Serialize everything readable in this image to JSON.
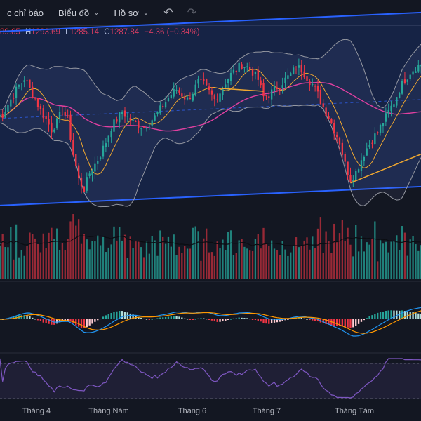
{
  "toolbar": {
    "indicators_label": "c chỉ báo",
    "chart_label": "Biểu đồ",
    "profile_label": "Hồ sơ"
  },
  "ohlc": {
    "open": "89.65",
    "high_key": "H",
    "high": "1293.69",
    "low_key": "L",
    "low": "1285.14",
    "close_key": "C",
    "close": "1287.84",
    "change": "−4.36 (−0.34%)"
  },
  "colors": {
    "up": "#26a69a",
    "down": "#f23645",
    "channel": "#2962ff",
    "bb": "#9598a1",
    "ma_fast": "#f0a830",
    "ma_slow": "#e040a0",
    "macd": "#2196f3",
    "signal": "#ff9800",
    "rsi": "#7e57c2"
  },
  "chart_data": {
    "type": "candlestick",
    "x_axis_labels": [
      "Tháng 4",
      "Tháng Năm",
      "Tháng 6",
      "Tháng 7",
      "Tháng Tám"
    ],
    "seed_close": [
      1300,
      1302,
      1310,
      1318,
      1325,
      1331,
      1322,
      1315,
      1305,
      1298,
      1290,
      1296,
      1305,
      1298,
      1270,
      1250,
      1242,
      1255,
      1262,
      1270,
      1280,
      1292,
      1298,
      1304,
      1300,
      1296,
      1294,
      1292,
      1296,
      1300,
      1306,
      1312,
      1318,
      1322,
      1318,
      1314,
      1320,
      1328,
      1326,
      1320,
      1314,
      1320,
      1328,
      1334,
      1338,
      1342,
      1340,
      1336,
      1330,
      1316,
      1318,
      1322,
      1326,
      1330,
      1334,
      1340,
      1338,
      1332,
      1326,
      1318,
      1308,
      1300,
      1290,
      1280,
      1262,
      1250,
      1256,
      1266,
      1275,
      1282,
      1288,
      1296,
      1304,
      1312,
      1322,
      1330,
      1336,
      1340,
      1342,
      1344
    ]
  }
}
